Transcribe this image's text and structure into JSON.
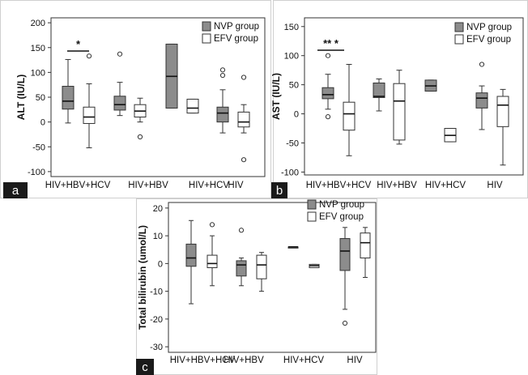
{
  "legend": {
    "nvp": "NVP group",
    "efv": "EFV group"
  },
  "colors": {
    "nvp_fill": "#8c8c8c",
    "efv_fill": "#ffffff",
    "stroke": "#333333"
  },
  "chart_data": [
    {
      "type": "box",
      "panel": "a",
      "ylabel": "ALT (IU/L)",
      "ylim": [
        -110,
        210
      ],
      "yticks": [
        200,
        150,
        100,
        50,
        0,
        -50,
        -100
      ],
      "categories": [
        "HIV+HBV+HCV",
        "HIV+HBV",
        "HIV+HCV",
        "HIV"
      ],
      "series": [
        {
          "name": "NVP group",
          "boxes": [
            {
              "whisker_low": -2,
              "q1": 26,
              "median": 42,
              "q3": 72,
              "whisker_high": 126,
              "outliers": []
            },
            {
              "whisker_low": 13,
              "q1": 24,
              "median": 35,
              "q3": 52,
              "whisker_high": 80,
              "outliers": [
                137
              ]
            },
            {
              "whisker_low": 28,
              "q1": 28,
              "median": 92,
              "q3": 157,
              "whisker_high": 157,
              "outliers": []
            },
            {
              "whisker_low": -22,
              "q1": 0,
              "median": 18,
              "q3": 30,
              "whisker_high": 65,
              "outliers": [
                94,
                105
              ]
            }
          ]
        },
        {
          "name": "EFV group",
          "boxes": [
            {
              "whisker_low": -52,
              "q1": -3,
              "median": 10,
              "q3": 30,
              "whisker_high": 77,
              "outliers": [
                133
              ]
            },
            {
              "whisker_low": 0,
              "q1": 10,
              "median": 22,
              "q3": 35,
              "whisker_high": 48,
              "outliers": [
                -30
              ]
            },
            {
              "whisker_low": 18,
              "q1": 18,
              "median": 28,
              "q3": 46,
              "whisker_high": 46,
              "outliers": []
            },
            {
              "whisker_low": -22,
              "q1": -10,
              "median": 0,
              "q3": 20,
              "whisker_high": 35,
              "outliers": [
                90,
                -76
              ]
            }
          ]
        }
      ],
      "significance": {
        "category": "HIV+HBV+HCV",
        "label": "*"
      }
    },
    {
      "type": "box",
      "panel": "b",
      "ylabel": "AST (IU/L)",
      "ylim": [
        -105,
        165
      ],
      "yticks": [
        150,
        100,
        50,
        0,
        -50,
        -100
      ],
      "categories": [
        "HIV+HBV+HCV",
        "HIV+HBV",
        "HIV+HCV",
        "HIV"
      ],
      "series": [
        {
          "name": "NVP group",
          "boxes": [
            {
              "whisker_low": 8,
              "q1": 26,
              "median": 33,
              "q3": 45,
              "whisker_high": 68,
              "outliers": [
                100,
                -5
              ]
            },
            {
              "whisker_low": 5,
              "q1": 28,
              "median": 30,
              "q3": 53,
              "whisker_high": 60,
              "outliers": []
            },
            {
              "whisker_low": 39,
              "q1": 39,
              "median": 48,
              "q3": 58,
              "whisker_high": 58,
              "outliers": []
            },
            {
              "whisker_low": -27,
              "q1": 10,
              "median": 27,
              "q3": 36,
              "whisker_high": 48,
              "outliers": [
                85
              ]
            }
          ]
        },
        {
          "name": "EFV group",
          "boxes": [
            {
              "whisker_low": -72,
              "q1": -28,
              "median": 0,
              "q3": 20,
              "whisker_high": 85,
              "outliers": []
            },
            {
              "whisker_low": -52,
              "q1": -45,
              "median": 22,
              "q3": 52,
              "whisker_high": 75,
              "outliers": []
            },
            {
              "whisker_low": -48,
              "q1": -48,
              "median": -37,
              "q3": -25,
              "whisker_high": -25,
              "outliers": []
            },
            {
              "whisker_low": -88,
              "q1": -22,
              "median": 15,
              "q3": 30,
              "whisker_high": 42,
              "outliers": []
            }
          ]
        }
      ],
      "significance": {
        "category": "HIV+HBV+HCV",
        "label": "** *"
      }
    },
    {
      "type": "box",
      "panel": "c",
      "ylabel": "Total bilirubin (umol/L)",
      "ylim": [
        -32,
        22
      ],
      "yticks": [
        20,
        10,
        0,
        -10,
        -20,
        -30
      ],
      "categories": [
        "HIV+HBV+HCV",
        "HIV+HBV",
        "HIV+HCV",
        "HIV"
      ],
      "series": [
        {
          "name": "NVP group",
          "boxes": [
            {
              "whisker_low": -14.5,
              "q1": -1,
              "median": 2,
              "q3": 7,
              "whisker_high": 15.5,
              "outliers": []
            },
            {
              "whisker_low": -8,
              "q1": -4.5,
              "median": -0.5,
              "q3": 1,
              "whisker_high": 2,
              "outliers": [
                12
              ]
            },
            {
              "whisker_low": 6,
              "q1": 6,
              "median": 6,
              "q3": 6,
              "whisker_high": 6,
              "outliers": []
            },
            {
              "whisker_low": -16.5,
              "q1": -2.5,
              "median": 4.5,
              "q3": 9,
              "whisker_high": 13,
              "outliers": [
                -21.5
              ]
            }
          ]
        },
        {
          "name": "EFV group",
          "boxes": [
            {
              "whisker_low": -8,
              "q1": -1.5,
              "median": 0,
              "q3": 3,
              "whisker_high": 10,
              "outliers": [
                14
              ]
            },
            {
              "whisker_low": -10,
              "q1": -5.5,
              "median": -0.5,
              "q3": 3,
              "whisker_high": 4,
              "outliers": []
            },
            {
              "whisker_low": -1.5,
              "q1": -1.5,
              "median": -0.8,
              "q3": -0.3,
              "whisker_high": -0.3,
              "outliers": []
            },
            {
              "whisker_low": -5,
              "q1": 2,
              "median": 7.5,
              "q3": 11,
              "whisker_high": 13,
              "outliers": []
            }
          ]
        }
      ]
    }
  ]
}
